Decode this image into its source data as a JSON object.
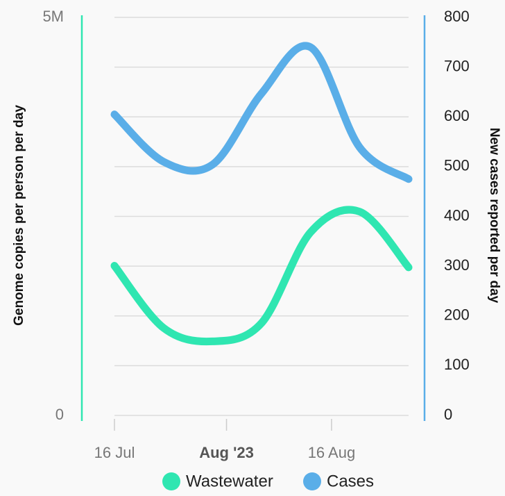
{
  "chart_data": {
    "type": "line",
    "x": [
      "2023-07-16",
      "2023-07-23",
      "2023-07-30",
      "2023-08-06",
      "2023-08-13",
      "2023-08-20",
      "2023-08-27"
    ],
    "xlim": [
      "2023-07-16",
      "2023-08-27"
    ],
    "xticks": [
      {
        "value": "2023-07-16",
        "label": "16 Jul"
      },
      {
        "value": "2023-08-01",
        "label": "Aug '23"
      },
      {
        "value": "2023-08-16",
        "label": "16 Aug"
      }
    ],
    "ylabel": "Genome copies per person per day",
    "y2label": "New cases reported per day",
    "ylim": [
      0,
      5000000
    ],
    "yticks": [
      {
        "value": 0,
        "label": "0"
      },
      {
        "value": 5000000,
        "label": "5M"
      }
    ],
    "y2lim": [
      0,
      800
    ],
    "y2ticks": [
      0,
      100,
      200,
      300,
      400,
      500,
      600,
      700,
      800
    ],
    "grid": true,
    "series": [
      {
        "name": "Wastewater",
        "color": "#2fe6b1",
        "values": [
          1880000,
          1100000,
          930000,
          1160000,
          2300000,
          2560000,
          1860000
        ]
      },
      {
        "name": "Cases",
        "color": "#5aaee8",
        "axis": "y2",
        "values": [
          605,
          510,
          504,
          647,
          740,
          539,
          475
        ]
      }
    ]
  }
}
